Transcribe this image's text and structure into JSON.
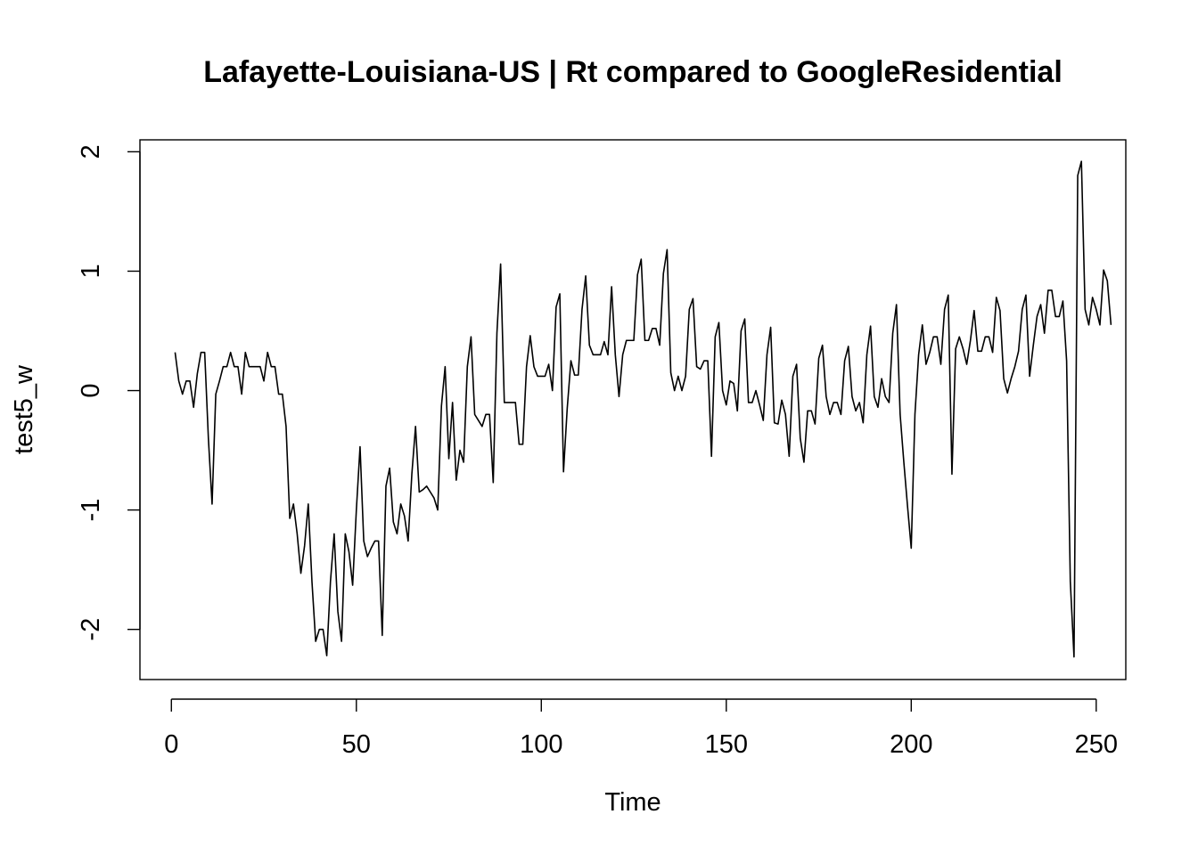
{
  "chart_data": {
    "type": "line",
    "title": "Lafayette-Louisiana-US | Rt compared to GoogleResidential",
    "xlabel": "Time",
    "ylabel": "test5_w",
    "xlim": [
      -8.5,
      258
    ],
    "ylim": [
      -2.42,
      2.1
    ],
    "x_ticks": [
      0,
      50,
      100,
      150,
      200,
      250
    ],
    "y_ticks": [
      -2,
      -1,
      0,
      1,
      2
    ],
    "x_start": 1,
    "series": [
      {
        "name": "test5_w",
        "color": "#000000",
        "values": [
          0.32,
          0.08,
          -0.03,
          0.08,
          0.08,
          -0.14,
          0.14,
          0.32,
          0.32,
          -0.4,
          -0.95,
          -0.03,
          0.08,
          0.2,
          0.2,
          0.32,
          0.2,
          0.2,
          -0.03,
          0.32,
          0.2,
          0.2,
          0.2,
          0.2,
          0.08,
          0.32,
          0.2,
          0.2,
          -0.03,
          -0.03,
          -0.3,
          -1.07,
          -0.95,
          -1.2,
          -1.53,
          -1.3,
          -0.95,
          -1.6,
          -2.1,
          -2.0,
          -2.0,
          -2.22,
          -1.6,
          -1.2,
          -1.85,
          -2.1,
          -1.2,
          -1.35,
          -1.63,
          -1.0,
          -0.47,
          -1.26,
          -1.39,
          -1.32,
          -1.26,
          -1.26,
          -2.05,
          -0.8,
          -0.65,
          -1.1,
          -1.2,
          -0.95,
          -1.05,
          -1.26,
          -0.7,
          -0.3,
          -0.85,
          -0.83,
          -0.8,
          -0.85,
          -0.9,
          -1.0,
          -0.13,
          0.2,
          -0.57,
          -0.1,
          -0.75,
          -0.5,
          -0.6,
          0.2,
          0.45,
          -0.2,
          -0.25,
          -0.3,
          -0.2,
          -0.2,
          -0.77,
          0.48,
          1.06,
          -0.1,
          -0.1,
          -0.1,
          -0.1,
          -0.45,
          -0.45,
          0.2,
          0.46,
          0.2,
          0.12,
          0.12,
          0.12,
          0.22,
          0.0,
          0.7,
          0.81,
          -0.68,
          -0.15,
          0.25,
          0.13,
          0.13,
          0.68,
          0.96,
          0.38,
          0.3,
          0.3,
          0.3,
          0.41,
          0.3,
          0.87,
          0.3,
          -0.05,
          0.3,
          0.42,
          0.42,
          0.42,
          0.97,
          1.1,
          0.42,
          0.42,
          0.52,
          0.52,
          0.38,
          0.98,
          1.18,
          0.15,
          0.0,
          0.12,
          0.0,
          0.12,
          0.68,
          0.77,
          0.2,
          0.18,
          0.25,
          0.25,
          -0.55,
          0.45,
          0.57,
          0.0,
          -0.12,
          0.08,
          0.06,
          -0.17,
          0.5,
          0.6,
          -0.1,
          -0.1,
          0.0,
          -0.12,
          -0.25,
          0.3,
          0.53,
          -0.27,
          -0.28,
          -0.08,
          -0.2,
          -0.55,
          0.12,
          0.22,
          -0.4,
          -0.6,
          -0.17,
          -0.17,
          -0.28,
          0.27,
          0.38,
          -0.05,
          -0.2,
          -0.1,
          -0.1,
          -0.2,
          0.25,
          0.37,
          -0.05,
          -0.17,
          -0.1,
          -0.27,
          0.3,
          0.54,
          -0.05,
          -0.14,
          0.1,
          -0.05,
          -0.1,
          0.48,
          0.72,
          -0.2,
          -0.6,
          -0.97,
          -1.32,
          -0.2,
          0.3,
          0.55,
          0.22,
          0.32,
          0.45,
          0.45,
          0.22,
          0.68,
          0.8,
          -0.7,
          0.35,
          0.45,
          0.35,
          0.22,
          0.42,
          0.67,
          0.33,
          0.33,
          0.45,
          0.45,
          0.32,
          0.78,
          0.67,
          0.1,
          -0.02,
          0.1,
          0.2,
          0.33,
          0.68,
          0.8,
          0.12,
          0.38,
          0.62,
          0.72,
          0.48,
          0.84,
          0.84,
          0.62,
          0.62,
          0.75,
          0.25,
          -1.6,
          -2.23,
          1.8,
          1.92,
          0.68,
          0.55,
          0.78,
          0.68,
          0.55,
          1.01,
          0.92,
          0.55
        ]
      }
    ]
  }
}
